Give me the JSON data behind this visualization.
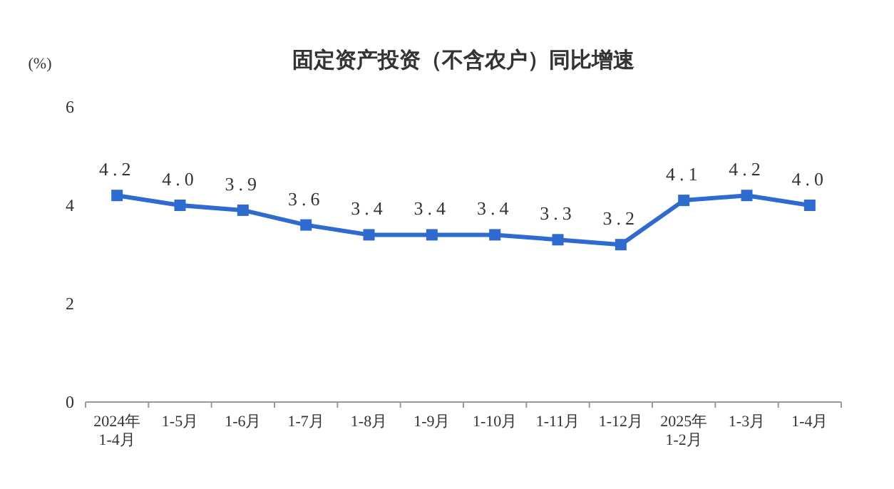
{
  "chart_data": {
    "type": "line",
    "title": "固定资产投资（不含农户）同比增速",
    "ylabel": "(%)",
    "categories": [
      "2024年\n1-4月",
      "1-5月",
      "1-6月",
      "1-7月",
      "1-8月",
      "1-9月",
      "1-10月",
      "1-11月",
      "1-12月",
      "2025年\n1-2月",
      "1-3月",
      "1-4月"
    ],
    "series": [
      {
        "color": "#2e6ad0",
        "values": [
          4.2,
          4.0,
          3.9,
          3.6,
          3.4,
          3.4,
          3.4,
          3.3,
          3.2,
          4.1,
          4.2,
          4.0
        ]
      }
    ],
    "value_labels": [
      "4.2",
      "4.0",
      "3.9",
      "3.6",
      "3.4",
      "3.4",
      "3.4",
      "3.3",
      "3.2",
      "4.1",
      "4.2",
      "4.0"
    ],
    "ylim": [
      0,
      6
    ],
    "yticks": [
      0,
      2,
      4,
      6
    ],
    "grid": false,
    "marker": "square",
    "line_style": "solid"
  }
}
